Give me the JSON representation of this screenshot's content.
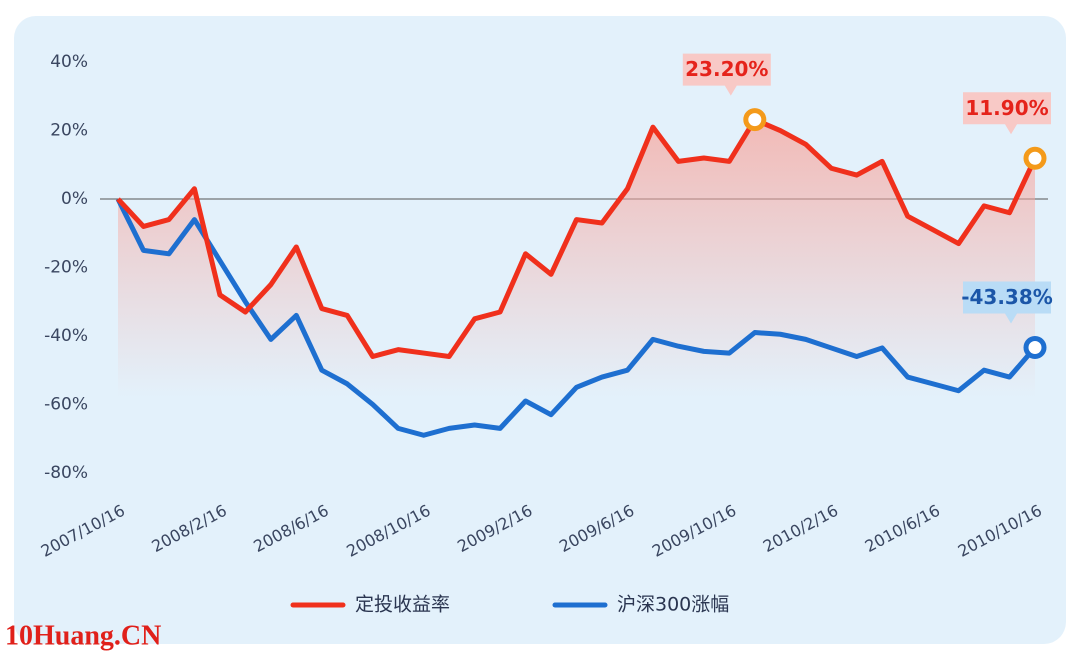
{
  "chart_data": {
    "type": "line",
    "categories": [
      "2007/10/16",
      null,
      null,
      null,
      "2008/2/16",
      null,
      null,
      null,
      "2008/6/16",
      null,
      null,
      null,
      "2008/10/16",
      null,
      null,
      null,
      "2009/2/16",
      null,
      null,
      null,
      "2009/6/16",
      null,
      null,
      null,
      "2009/10/16",
      null,
      null,
      null,
      "2010/2/16",
      null,
      null,
      null,
      "2010/6/16",
      null,
      null,
      null,
      "2010/10/16"
    ],
    "series": [
      {
        "name": "定投收益率",
        "color": "#f0301c",
        "values": [
          0,
          -8,
          -6,
          3,
          -28,
          -33,
          -25,
          -14,
          -32,
          -34,
          -46,
          -44,
          -45,
          -46,
          -35,
          -33,
          -16,
          -22,
          -6,
          -7,
          3,
          21,
          11,
          12,
          11,
          23.2,
          20,
          16,
          9,
          7,
          11,
          -5,
          -9,
          -13,
          -2,
          -4,
          11.9
        ],
        "value_labels": [
          null,
          null,
          null,
          null,
          null,
          null,
          null,
          null,
          null,
          null,
          null,
          null,
          null,
          null,
          null,
          null,
          null,
          null,
          null,
          null,
          null,
          null,
          null,
          null,
          null,
          "23.20%",
          null,
          null,
          null,
          null,
          null,
          null,
          null,
          null,
          null,
          null,
          "11.90%"
        ]
      },
      {
        "name": "沪深300涨幅",
        "color": "#1e6fd0",
        "values": [
          0,
          -15,
          -16,
          -6,
          -18,
          -30,
          -41,
          -34,
          -50,
          -54,
          -60,
          -67,
          -69,
          -67,
          -66,
          -67,
          -59,
          -63,
          -55,
          -52,
          -50,
          -41,
          -43,
          -44.5,
          -45,
          -39,
          -39.5,
          -41,
          -43.5,
          -46,
          -43.5,
          -52,
          -54,
          -56,
          -50,
          -52,
          -43.38
        ],
        "value_labels": [
          null,
          null,
          null,
          null,
          null,
          null,
          null,
          null,
          null,
          null,
          null,
          null,
          null,
          null,
          null,
          null,
          null,
          null,
          null,
          null,
          null,
          null,
          null,
          null,
          null,
          null,
          null,
          null,
          null,
          null,
          null,
          null,
          null,
          null,
          null,
          null,
          "-43.38%"
        ]
      }
    ],
    "ylim": [
      -85,
      45
    ],
    "yticks": [
      {
        "value": 40,
        "label": "40%"
      },
      {
        "value": 20,
        "label": "20%"
      },
      {
        "value": 0,
        "label": "0%"
      },
      {
        "value": -20,
        "label": "-20%"
      },
      {
        "value": -40,
        "label": "-40%"
      },
      {
        "value": -60,
        "label": "-60%"
      },
      {
        "value": -80,
        "label": "-80%"
      }
    ],
    "legend": "bottom",
    "annotation": "10Huang.CN"
  }
}
